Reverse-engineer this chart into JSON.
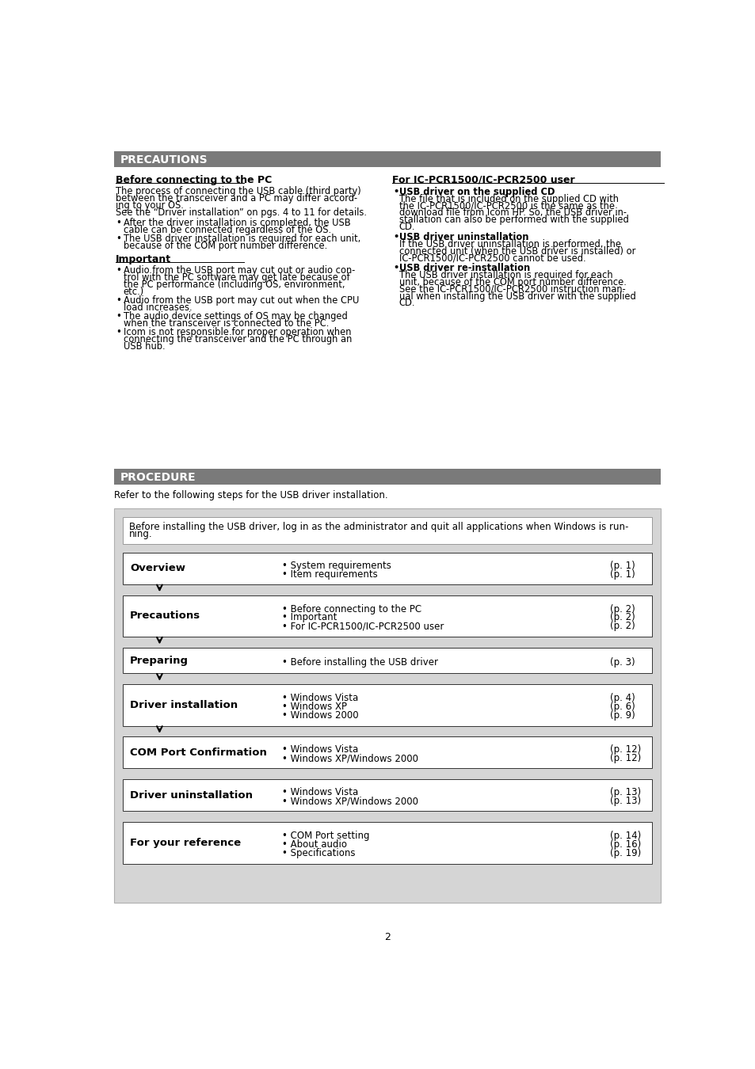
{
  "page_bg": "#ffffff",
  "header_bg": "#7a7a7a",
  "header_text_color": "#ffffff",
  "dark_text": "#000000",
  "precautions_title": "PRECAUTIONS",
  "procedure_title": "PROCEDURE",
  "left_col_heading1": "Before connecting to the PC",
  "left_col_para1": "The process of connecting the USB cable (third party)\nbetween the transceiver and a PC may differ accord-\ning to your OS.\nSee the “Driver installation” on pgs. 4 to 11 for details.",
  "left_col_bullets1_line1": "After the driver installation is completed, the USB",
  "left_col_bullets1_line1b": "  cable can be connected regardless of the OS.",
  "left_col_bullets1_line2": "The USB driver installation is required for each unit,",
  "left_col_bullets1_line2b": "  because of the COM port number difference.",
  "left_col_heading2": "Important",
  "left_col_bullets2": [
    [
      "Audio from the USB port may cut out or audio con-",
      "trol with the PC software may get late because of",
      "the PC performance (including OS, environment,",
      "etc.)"
    ],
    [
      "Audio from the USB port may cut out when the CPU",
      "load increases."
    ],
    [
      "The audio device settings of OS may be changed",
      "when the transceiver is connected to the PC."
    ],
    [
      "Icom is not responsible for proper operation when",
      "connecting the transceiver and the PC through an",
      "USB hub."
    ]
  ],
  "right_col_heading1": "For IC-PCR1500/IC-PCR2500 user",
  "right_bullets": [
    {
      "bold": "USB driver on the supplied CD",
      "text": [
        "The file that is included on the supplied CD with",
        "the IC-PCR1500/IC-PCR2500 is the same as the",
        "download file from Icom HP. So, the USB driver in-",
        "stallation can also be performed with the supplied",
        "CD."
      ]
    },
    {
      "bold": "USB driver uninstallation",
      "text": [
        "If the USB driver uninstallation is performed, the",
        "connected unit (when the USB driver is installed) or",
        "IC-PCR1500/IC-PCR2500 cannot be used."
      ]
    },
    {
      "bold": "USB driver re-installation",
      "text": [
        "The USB driver installation is required for each",
        "unit, because of the COM port number difference.",
        "See the IC-PCR1500/IC-PCR2500 instruction man-",
        "ual when installing the USB driver with the supplied",
        "CD."
      ]
    }
  ],
  "procedure_intro": "Refer to the following steps for the USB driver installation.",
  "procedure_note_line1": "Before installing the USB driver, log in as the administrator and quit all applications when Windows is run-",
  "procedure_note_line2": "ning.",
  "flow_rows": [
    {
      "label": "Overview",
      "items": [
        "• System requirements",
        "• Item requirements"
      ],
      "pages": [
        "(p. 1)",
        "(p. 1)"
      ],
      "arrow_above": false
    },
    {
      "label": "Precautions",
      "items": [
        "• Before connecting to the PC",
        "• Important",
        "• For IC-PCR1500/IC-PCR2500 user"
      ],
      "pages": [
        "(p. 2)",
        "(p. 2)",
        "(p. 2)"
      ],
      "arrow_above": true
    },
    {
      "label": "Preparing",
      "items": [
        "• Before installing the USB driver"
      ],
      "pages": [
        "(p. 3)"
      ],
      "arrow_above": true
    },
    {
      "label": "Driver installation",
      "items": [
        "• Windows Vista",
        "• Windows XP",
        "• Windows 2000"
      ],
      "pages": [
        "(p. 4)",
        "(p. 6)",
        "(p. 9)"
      ],
      "arrow_above": true
    },
    {
      "label": "COM Port Confirmation",
      "items": [
        "• Windows Vista",
        "• Windows XP/Windows 2000"
      ],
      "pages": [
        "(p. 12)",
        "(p. 12)"
      ],
      "arrow_above": true
    },
    {
      "label": "Driver uninstallation",
      "items": [
        "• Windows Vista",
        "• Windows XP/Windows 2000"
      ],
      "pages": [
        "(p. 13)",
        "(p. 13)"
      ],
      "arrow_above": false
    },
    {
      "label": "For your reference",
      "items": [
        "• COM Port setting",
        "• About audio",
        "• Specifications"
      ],
      "pages": [
        "(p. 14)",
        "(p. 16)",
        "(p. 19)"
      ],
      "arrow_above": false
    }
  ],
  "page_number": "2"
}
